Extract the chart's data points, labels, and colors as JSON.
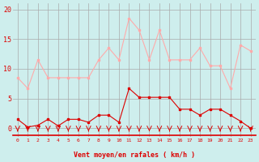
{
  "x24": [
    0,
    1,
    2,
    3,
    4,
    5,
    6,
    7,
    8,
    9,
    10,
    11,
    12,
    13,
    14,
    15,
    16,
    17,
    18,
    19,
    20,
    21,
    22,
    23
  ],
  "wind_avg": [
    1.5,
    0.2,
    0.5,
    1.5,
    0.4,
    1.5,
    1.5,
    1.0,
    2.2,
    2.2,
    1.0,
    6.7,
    5.2,
    5.2,
    5.2,
    5.2,
    3.2,
    3.2,
    2.2,
    3.2,
    3.2,
    2.2,
    1.2,
    0.0
  ],
  "wind_gust": [
    8.5,
    6.7,
    11.5,
    8.5,
    8.5,
    8.5,
    8.5,
    8.5,
    11.5,
    13.5,
    11.5,
    18.5,
    16.5,
    11.5,
    16.5,
    11.5,
    11.5,
    11.5,
    13.5,
    10.5,
    10.5,
    6.7,
    14.0,
    13.0
  ],
  "bg_color": "#ceeeed",
  "grid_color": "#aaaaaa",
  "line_color_avg": "#dd0000",
  "line_color_gust": "#ffaaaa",
  "xlabel": "Vent moyen/en rafales ( km/h )",
  "yticks": [
    0,
    5,
    10,
    15,
    20
  ],
  "ylim": [
    -1.5,
    21
  ],
  "xlim": [
    -0.5,
    23.5
  ]
}
